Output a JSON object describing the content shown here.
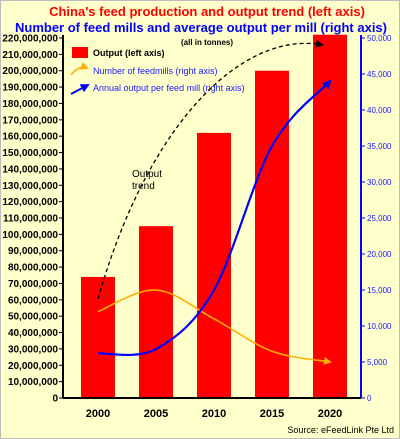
{
  "chart_data": {
    "type": "bar",
    "title": "China's feed production and output trend (left axis)",
    "subtitle": "Number of feed mills and average output per mill (right axis)",
    "unit_note": "(all in tonnes)",
    "categories": [
      "2000",
      "2005",
      "2010",
      "2015",
      "2020"
    ],
    "left_axis": {
      "min": 0,
      "max": 220000000,
      "step": 10000000,
      "tick_labels": [
        "0",
        "10,000,000",
        "20,000,000",
        "30,000,000",
        "40,000,000",
        "50,000,000",
        "60,000,000",
        "70,000,000",
        "80,000,000",
        "90,000,000",
        "100,000,000",
        "110,000,000",
        "120,000,000",
        "130,000,000",
        "140,000,000",
        "150,000,000",
        "160,000,000",
        "170,000,000",
        "180,000,000",
        "190,000,000",
        "200,000,000",
        "210,000,000",
        "220,000,000"
      ]
    },
    "right_axis": {
      "min": 0,
      "max": 50000,
      "step": 5000,
      "tick_labels": [
        "0",
        "5,000",
        "10,000",
        "15,000",
        "20,000",
        "25,000",
        "30,000",
        "35,000",
        "40,000",
        "45,000",
        "50,000"
      ]
    },
    "series": [
      {
        "name": "Output (left axis)",
        "type": "bar",
        "axis": "left",
        "color": "#ff0000",
        "values": [
          74000000,
          105000000,
          162000000,
          200000000,
          222000000
        ]
      },
      {
        "name": "Number of feedmills (right axis)",
        "type": "line",
        "axis": "right",
        "color": "#ffb000",
        "values": [
          12000,
          15000,
          11000,
          6500,
          5000
        ]
      },
      {
        "name": "Annual output per feed mill (right axis)",
        "type": "line",
        "axis": "right",
        "color": "#0000ff",
        "values": [
          6200,
          6800,
          15000,
          35000,
          44000
        ]
      }
    ],
    "trend_line": {
      "label": "Output\ntrend",
      "style": "dashed",
      "color": "#000000"
    },
    "legend_position": "top-left",
    "grid": false,
    "source": "Source: eFeedLink Pte Ltd"
  }
}
